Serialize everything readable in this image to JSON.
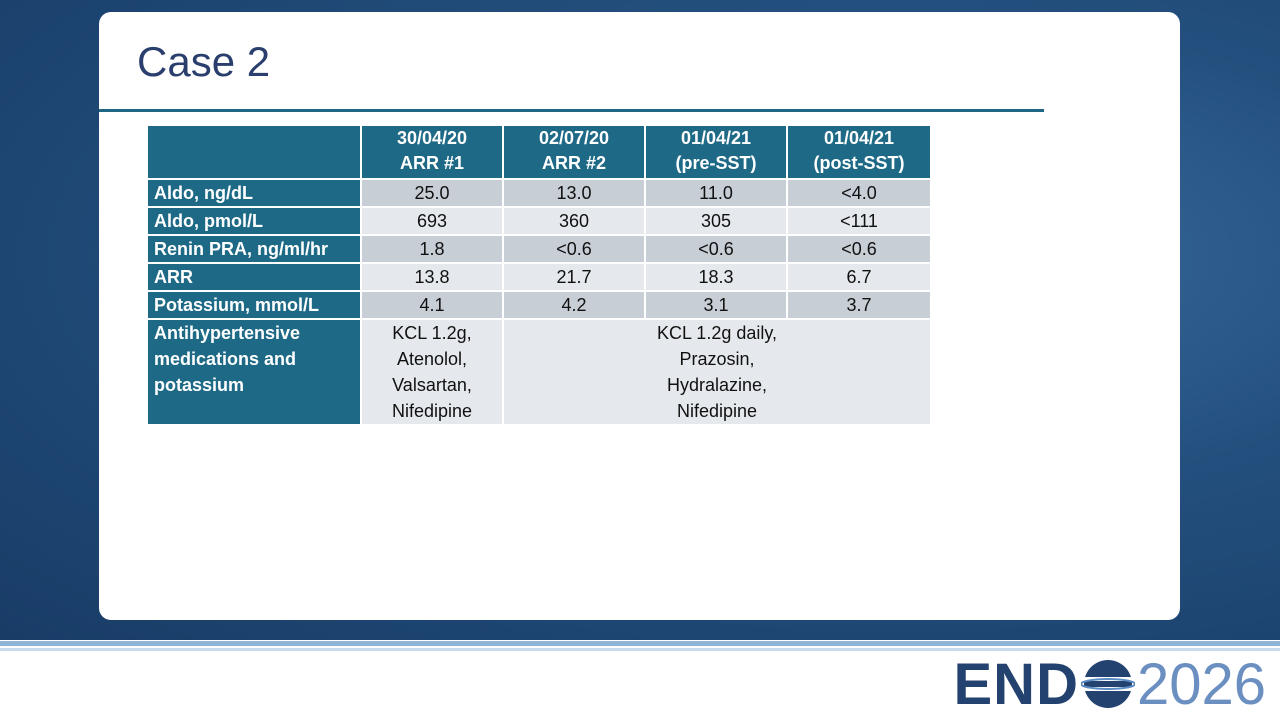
{
  "title": "Case 2",
  "table": {
    "header": [
      [
        "30/04/20",
        "ARR #1"
      ],
      [
        "02/07/20",
        "ARR #2"
      ],
      [
        "01/04/21",
        "(pre-SST)"
      ],
      [
        "01/04/21",
        "(post-SST)"
      ]
    ],
    "rows": [
      {
        "label": [
          "Aldo, ng/dL"
        ],
        "values": [
          [
            "25.0"
          ],
          [
            "13.0"
          ],
          [
            "11.0"
          ],
          [
            "<4.0"
          ]
        ]
      },
      {
        "label": [
          "Aldo, pmol/L"
        ],
        "values": [
          [
            "693"
          ],
          [
            "360"
          ],
          [
            "305"
          ],
          [
            "<111"
          ]
        ]
      },
      {
        "label": [
          "Renin PRA, ng/ml/hr"
        ],
        "values": [
          [
            "1.8"
          ],
          [
            "<0.6"
          ],
          [
            "<0.6"
          ],
          [
            "<0.6"
          ]
        ]
      },
      {
        "label": [
          "ARR"
        ],
        "values": [
          [
            "13.8"
          ],
          [
            "21.7"
          ],
          [
            "18.3"
          ],
          [
            "6.7"
          ]
        ]
      },
      {
        "label": [
          "Potassium, mmol/L"
        ],
        "values": [
          [
            "4.1"
          ],
          [
            "4.2"
          ],
          [
            "3.1"
          ],
          [
            "3.7"
          ]
        ]
      },
      {
        "label": [
          "Antihypertensive",
          "medications and",
          "potassium"
        ],
        "values": [
          [
            "KCL 1.2g,",
            "Atenolol,",
            "Valsartan,",
            "Nifedipine"
          ],
          [
            "KCL 1.2g daily,",
            "Prazosin,",
            "Hydralazine,",
            "Nifedipine"
          ]
        ]
      }
    ]
  },
  "logo": {
    "left": "END",
    "right": "2026"
  }
}
